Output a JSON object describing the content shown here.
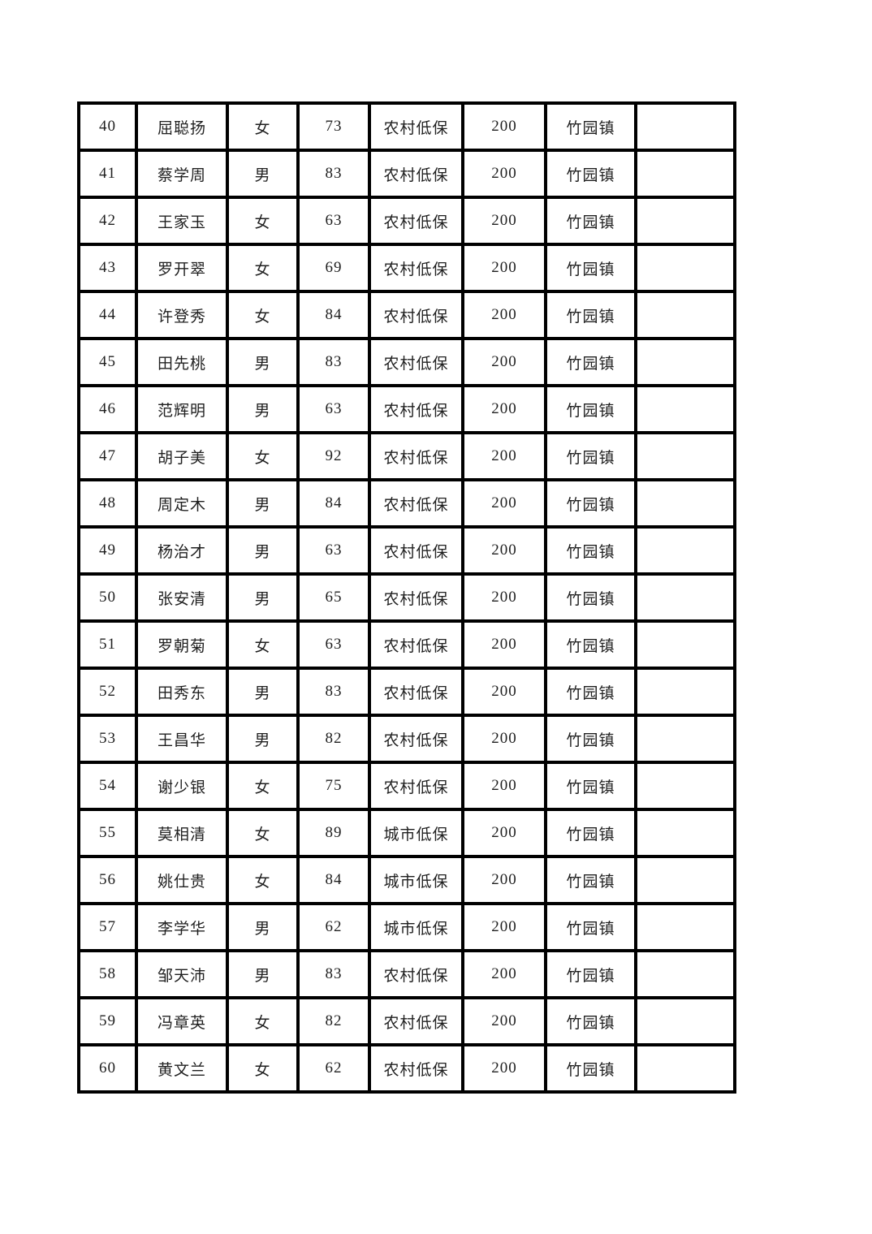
{
  "page": {
    "background_color": "#ffffff",
    "table_border_color": "#000000",
    "table_text_color": "#1f1f1f"
  },
  "table": {
    "rows": [
      {
        "no": "40",
        "name": "屈聪扬",
        "gender": "女",
        "age": "73",
        "category": "农村低保",
        "amount": "200",
        "town": "竹园镇",
        "note": ""
      },
      {
        "no": "41",
        "name": "蔡学周",
        "gender": "男",
        "age": "83",
        "category": "农村低保",
        "amount": "200",
        "town": "竹园镇",
        "note": ""
      },
      {
        "no": "42",
        "name": "王家玉",
        "gender": "女",
        "age": "63",
        "category": "农村低保",
        "amount": "200",
        "town": "竹园镇",
        "note": ""
      },
      {
        "no": "43",
        "name": "罗开翠",
        "gender": "女",
        "age": "69",
        "category": "农村低保",
        "amount": "200",
        "town": "竹园镇",
        "note": ""
      },
      {
        "no": "44",
        "name": "许登秀",
        "gender": "女",
        "age": "84",
        "category": "农村低保",
        "amount": "200",
        "town": "竹园镇",
        "note": ""
      },
      {
        "no": "45",
        "name": "田先桃",
        "gender": "男",
        "age": "83",
        "category": "农村低保",
        "amount": "200",
        "town": "竹园镇",
        "note": ""
      },
      {
        "no": "46",
        "name": "范辉明",
        "gender": "男",
        "age": "63",
        "category": "农村低保",
        "amount": "200",
        "town": "竹园镇",
        "note": ""
      },
      {
        "no": "47",
        "name": "胡子美",
        "gender": "女",
        "age": "92",
        "category": "农村低保",
        "amount": "200",
        "town": "竹园镇",
        "note": ""
      },
      {
        "no": "48",
        "name": "周定木",
        "gender": "男",
        "age": "84",
        "category": "农村低保",
        "amount": "200",
        "town": "竹园镇",
        "note": ""
      },
      {
        "no": "49",
        "name": "杨治才",
        "gender": "男",
        "age": "63",
        "category": "农村低保",
        "amount": "200",
        "town": "竹园镇",
        "note": ""
      },
      {
        "no": "50",
        "name": "张安清",
        "gender": "男",
        "age": "65",
        "category": "农村低保",
        "amount": "200",
        "town": "竹园镇",
        "note": ""
      },
      {
        "no": "51",
        "name": "罗朝菊",
        "gender": "女",
        "age": "63",
        "category": "农村低保",
        "amount": "200",
        "town": "竹园镇",
        "note": ""
      },
      {
        "no": "52",
        "name": "田秀东",
        "gender": "男",
        "age": "83",
        "category": "农村低保",
        "amount": "200",
        "town": "竹园镇",
        "note": ""
      },
      {
        "no": "53",
        "name": "王昌华",
        "gender": "男",
        "age": "82",
        "category": "农村低保",
        "amount": "200",
        "town": "竹园镇",
        "note": ""
      },
      {
        "no": "54",
        "name": "谢少银",
        "gender": "女",
        "age": "75",
        "category": "农村低保",
        "amount": "200",
        "town": "竹园镇",
        "note": ""
      },
      {
        "no": "55",
        "name": "莫相清",
        "gender": "女",
        "age": "89",
        "category": "城市低保",
        "amount": "200",
        "town": "竹园镇",
        "note": ""
      },
      {
        "no": "56",
        "name": "姚仕贵",
        "gender": "女",
        "age": "84",
        "category": "城市低保",
        "amount": "200",
        "town": "竹园镇",
        "note": ""
      },
      {
        "no": "57",
        "name": "李学华",
        "gender": "男",
        "age": "62",
        "category": "城市低保",
        "amount": "200",
        "town": "竹园镇",
        "note": ""
      },
      {
        "no": "58",
        "name": "邹天沛",
        "gender": "男",
        "age": "83",
        "category": "农村低保",
        "amount": "200",
        "town": "竹园镇",
        "note": ""
      },
      {
        "no": "59",
        "name": "冯章英",
        "gender": "女",
        "age": "82",
        "category": "农村低保",
        "amount": "200",
        "town": "竹园镇",
        "note": ""
      },
      {
        "no": "60",
        "name": "黄文兰",
        "gender": "女",
        "age": "62",
        "category": "农村低保",
        "amount": "200",
        "town": "竹园镇",
        "note": ""
      }
    ]
  }
}
